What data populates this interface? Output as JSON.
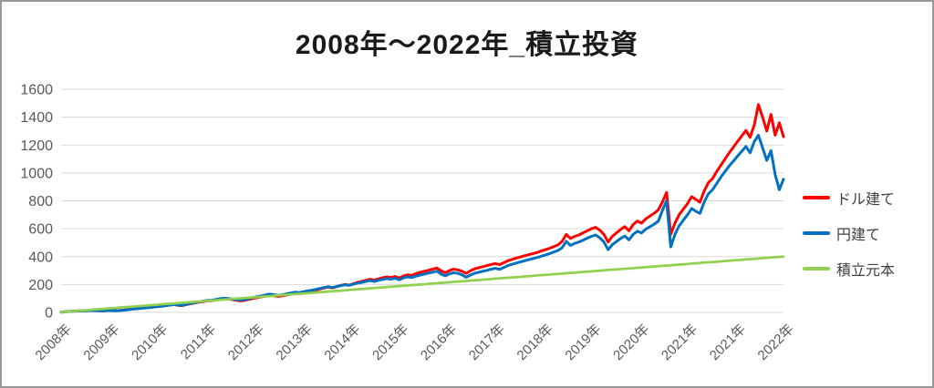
{
  "title": "2008年〜2022年_積立投資",
  "legend": {
    "items": [
      {
        "label": "ドル建て",
        "color": "#FF0000"
      },
      {
        "label": "円建て",
        "color": "#0070C0"
      },
      {
        "label": "積立元本",
        "color": "#92D050"
      }
    ]
  },
  "colors": {
    "grid": "#D9D9D9",
    "axis_text": "#595959",
    "title_text": "#1A1A1A",
    "background": "#FFFFFF",
    "border": "#979797"
  },
  "chart_data": {
    "type": "line",
    "title": "2008年〜2022年_積立投資",
    "xlabel": "",
    "ylabel": "",
    "ylim": [
      0,
      1600
    ],
    "y_ticks": [
      0,
      200,
      400,
      600,
      800,
      1000,
      1200,
      1400,
      1600
    ],
    "grid": "horizontal",
    "legend_position": "right",
    "x_tick_labels": [
      "2008年",
      "2009年",
      "2010年",
      "2011年",
      "2012年",
      "2013年",
      "2014年",
      "2015年",
      "2016年",
      "2017年",
      "2018年",
      "2019年",
      "2020年",
      "2021年",
      "2021年",
      "2022年"
    ],
    "x_points_per_series": 174,
    "series": [
      {
        "name": "ドル建て",
        "color": "#FF0000",
        "values": [
          2,
          5,
          7,
          9,
          11,
          12,
          13,
          14,
          15,
          13,
          12,
          14,
          15,
          13,
          14,
          17,
          21,
          25,
          28,
          31,
          34,
          36,
          39,
          43,
          45,
          49,
          53,
          56,
          51,
          48,
          56,
          62,
          68,
          73,
          78,
          82,
          84,
          90,
          94,
          98,
          96,
          92,
          86,
          82,
          86,
          94,
          100,
          106,
          112,
          118,
          123,
          119,
          115,
          119,
          125,
          131,
          136,
          133,
          139,
          146,
          152,
          160,
          168,
          175,
          182,
          176,
          185,
          193,
          200,
          196,
          206,
          215,
          222,
          230,
          238,
          232,
          240,
          248,
          255,
          250,
          258,
          246,
          262,
          270,
          266,
          278,
          288,
          295,
          302,
          310,
          318,
          298,
          285,
          300,
          310,
          305,
          295,
          280,
          298,
          312,
          320,
          328,
          336,
          344,
          350,
          342,
          356,
          370,
          380,
          390,
          398,
          406,
          414,
          422,
          430,
          440,
          450,
          460,
          472,
          484,
          510,
          560,
          530,
          545,
          555,
          570,
          585,
          600,
          610,
          590,
          560,
          505,
          545,
          570,
          595,
          615,
          585,
          630,
          655,
          640,
          670,
          690,
          710,
          735,
          790,
          860,
          560,
          640,
          700,
          740,
          780,
          830,
          810,
          790,
          870,
          930,
          960,
          1010,
          1055,
          1100,
          1145,
          1185,
          1225,
          1265,
          1305,
          1255,
          1345,
          1490,
          1400,
          1300,
          1420,
          1270,
          1360,
          1260
        ]
      },
      {
        "name": "円建て",
        "color": "#0070C0",
        "values": [
          2,
          5,
          7,
          9,
          10,
          11,
          12,
          13,
          14,
          12,
          11,
          13,
          14,
          12,
          13,
          16,
          19,
          23,
          26,
          29,
          32,
          34,
          37,
          41,
          44,
          48,
          52,
          56,
          52,
          50,
          58,
          64,
          70,
          76,
          81,
          86,
          87,
          93,
          98,
          102,
          100,
          96,
          91,
          88,
          92,
          100,
          107,
          113,
          119,
          125,
          131,
          127,
          123,
          127,
          133,
          139,
          145,
          142,
          148,
          155,
          158,
          165,
          172,
          178,
          185,
          178,
          186,
          192,
          198,
          194,
          202,
          210,
          215,
          222,
          228,
          222,
          230,
          236,
          242,
          238,
          245,
          234,
          248,
          255,
          250,
          260,
          268,
          275,
          282,
          288,
          295,
          275,
          262,
          276,
          285,
          280,
          270,
          252,
          268,
          280,
          288,
          295,
          302,
          310,
          316,
          308,
          322,
          336,
          345,
          354,
          362,
          370,
          378,
          386,
          394,
          403,
          412,
          422,
          433,
          444,
          465,
          510,
          480,
          495,
          505,
          518,
          532,
          545,
          555,
          535,
          505,
          450,
          485,
          508,
          530,
          548,
          520,
          560,
          582,
          570,
          596,
          614,
          632,
          654,
          730,
          800,
          470,
          560,
          620,
          660,
          700,
          745,
          725,
          710,
          790,
          850,
          880,
          925,
          970,
          1010,
          1050,
          1085,
          1120,
          1155,
          1190,
          1145,
          1225,
          1270,
          1180,
          1090,
          1160,
          990,
          880,
          955
        ]
      },
      {
        "name": "積立元本",
        "color": "#92D050",
        "values": [
          2,
          5,
          7,
          9,
          12,
          14,
          16,
          18,
          21,
          23,
          25,
          28,
          30,
          32,
          35,
          37,
          39,
          41,
          44,
          46,
          48,
          51,
          53,
          55,
          58,
          60,
          62,
          64,
          67,
          69,
          71,
          74,
          76,
          78,
          81,
          83,
          85,
          87,
          90,
          92,
          94,
          97,
          99,
          101,
          104,
          106,
          108,
          110,
          113,
          115,
          117,
          120,
          122,
          124,
          127,
          129,
          131,
          133,
          136,
          138,
          140,
          143,
          145,
          147,
          150,
          152,
          154,
          156,
          159,
          161,
          163,
          166,
          168,
          170,
          173,
          175,
          177,
          179,
          182,
          184,
          186,
          189,
          191,
          193,
          196,
          198,
          200,
          202,
          205,
          207,
          209,
          212,
          214,
          216,
          219,
          221,
          223,
          225,
          228,
          230,
          232,
          235,
          237,
          239,
          242,
          244,
          246,
          248,
          251,
          253,
          255,
          258,
          260,
          262,
          265,
          267,
          269,
          271,
          274,
          276,
          278,
          281,
          283,
          285,
          288,
          290,
          292,
          294,
          297,
          299,
          301,
          304,
          306,
          308,
          311,
          313,
          315,
          317,
          320,
          322,
          324,
          327,
          329,
          331,
          334,
          336,
          338,
          340,
          343,
          345,
          347,
          350,
          352,
          354,
          357,
          359,
          361,
          363,
          366,
          368,
          370,
          373,
          375,
          377,
          380,
          382,
          384,
          386,
          389,
          391,
          393,
          396,
          398,
          400
        ]
      }
    ]
  }
}
